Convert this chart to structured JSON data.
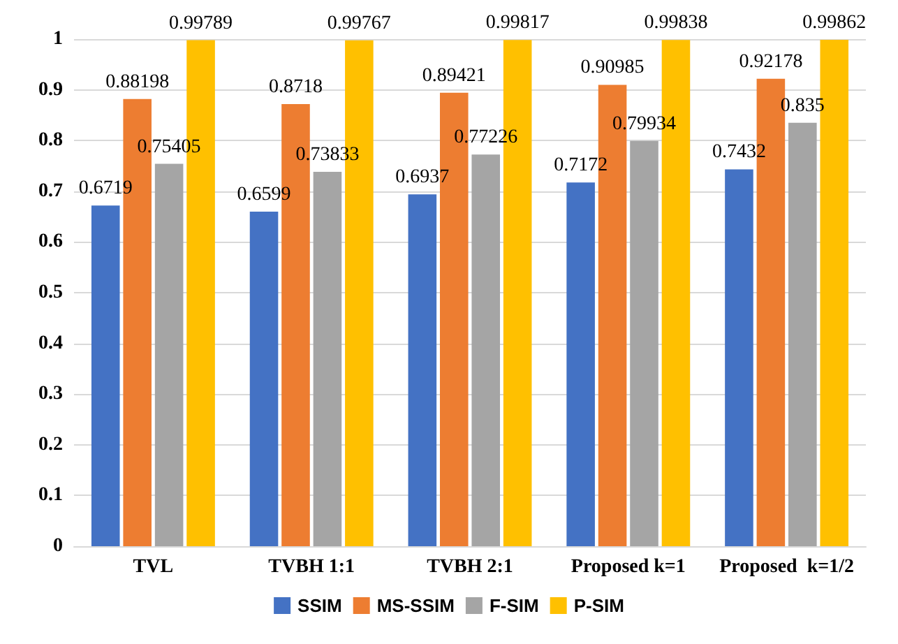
{
  "chart_data": {
    "type": "bar",
    "categories": [
      "TVL",
      "TVBH 1:1",
      "TVBH 2:1",
      "Proposed k=1",
      "Proposed  k=1/2"
    ],
    "series": [
      {
        "name": "SSIM",
        "color": "#4472c4",
        "values": [
          0.6719,
          0.6599,
          0.6937,
          0.7172,
          0.7432
        ]
      },
      {
        "name": "MS-SSIM",
        "color": "#ed7d31",
        "values": [
          0.88198,
          0.8718,
          0.89421,
          0.90985,
          0.92178
        ]
      },
      {
        "name": "F-SIM",
        "color": "#a5a5a5",
        "values": [
          0.75405,
          0.73833,
          0.77226,
          0.79934,
          0.835
        ]
      },
      {
        "name": "P-SIM",
        "color": "#ffc000",
        "values": [
          0.99789,
          0.99767,
          0.99817,
          0.99838,
          0.99862
        ]
      }
    ],
    "ylim": [
      0,
      1
    ],
    "yticks": [
      0,
      0.1,
      0.2,
      0.3,
      0.4,
      0.5,
      0.6,
      0.7,
      0.8,
      0.9,
      1
    ],
    "grid": "y",
    "legend": "bottom",
    "data_labels": true
  }
}
